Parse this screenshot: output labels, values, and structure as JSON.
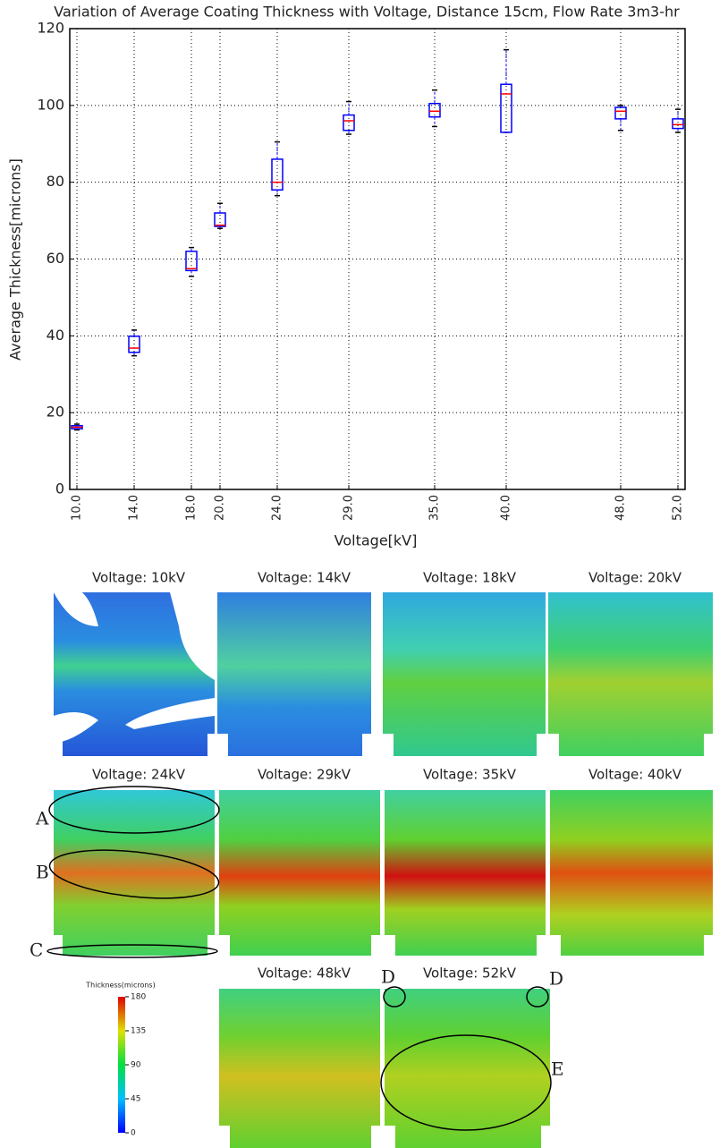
{
  "chart_data": {
    "type": "box",
    "title": "Variation of Average Coating Thickness with Voltage, Distance 15cm, Flow Rate 3m3-hr",
    "x_label": "Voltage[kV]",
    "y_label": "Average Thickness[microns]",
    "x": [
      10,
      14,
      18,
      20,
      24,
      29,
      35,
      40,
      48,
      52
    ],
    "low": [
      15.5,
      34.8,
      55.5,
      68,
      76.5,
      92.5,
      94.5,
      93,
      93.5,
      93
    ],
    "q1": [
      15.8,
      35.7,
      57,
      68.5,
      78,
      93.5,
      97,
      93,
      96.5,
      94
    ],
    "median": [
      16.2,
      36.8,
      57.5,
      68.8,
      80,
      96,
      98.5,
      103,
      98.5,
      95
    ],
    "q3": [
      16.6,
      39.9,
      62,
      72,
      86,
      97.5,
      100.5,
      105.5,
      99.5,
      96.5
    ],
    "high": [
      17,
      41.5,
      63,
      74.5,
      90.5,
      101,
      104,
      114.5,
      100,
      99
    ],
    "box_color": "#0000ff",
    "median_color": "#ff0000",
    "cap_color": "#000000",
    "xlim": [
      9.5,
      52.5
    ],
    "xticks": [
      {
        "value": 10,
        "label": "10.0"
      },
      {
        "value": 14,
        "label": "14.0"
      },
      {
        "value": 18,
        "label": "18.0"
      },
      {
        "value": 20,
        "label": "20.0"
      },
      {
        "value": 24,
        "label": "24.0"
      },
      {
        "value": 29,
        "label": "29.0"
      },
      {
        "value": 35,
        "label": "35.0"
      },
      {
        "value": 40,
        "label": "40.0"
      },
      {
        "value": 48,
        "label": "48.0"
      },
      {
        "value": 52,
        "label": "52.0"
      }
    ],
    "ylim": [
      0,
      120
    ],
    "yticks": [
      0,
      20,
      40,
      60,
      80,
      100,
      120
    ],
    "grid": true
  },
  "panels": [
    {
      "title": "Voltage: 10kV"
    },
    {
      "title": "Voltage: 14kV"
    },
    {
      "title": "Voltage: 18kV"
    },
    {
      "title": "Voltage: 20kV"
    },
    {
      "title": "Voltage: 24kV"
    },
    {
      "title": "Voltage: 29kV"
    },
    {
      "title": "Voltage: 35kV"
    },
    {
      "title": "Voltage: 40kV"
    },
    {
      "title": "Voltage: 48kV"
    },
    {
      "title": "Voltage: 52kV"
    }
  ],
  "annotations": [
    "A",
    "B",
    "C",
    "D",
    "D",
    "E"
  ],
  "colorbar": {
    "title": "Thickness(microns)",
    "lim": [
      0,
      180
    ],
    "ticks": [
      0,
      45,
      90,
      135,
      180
    ]
  }
}
